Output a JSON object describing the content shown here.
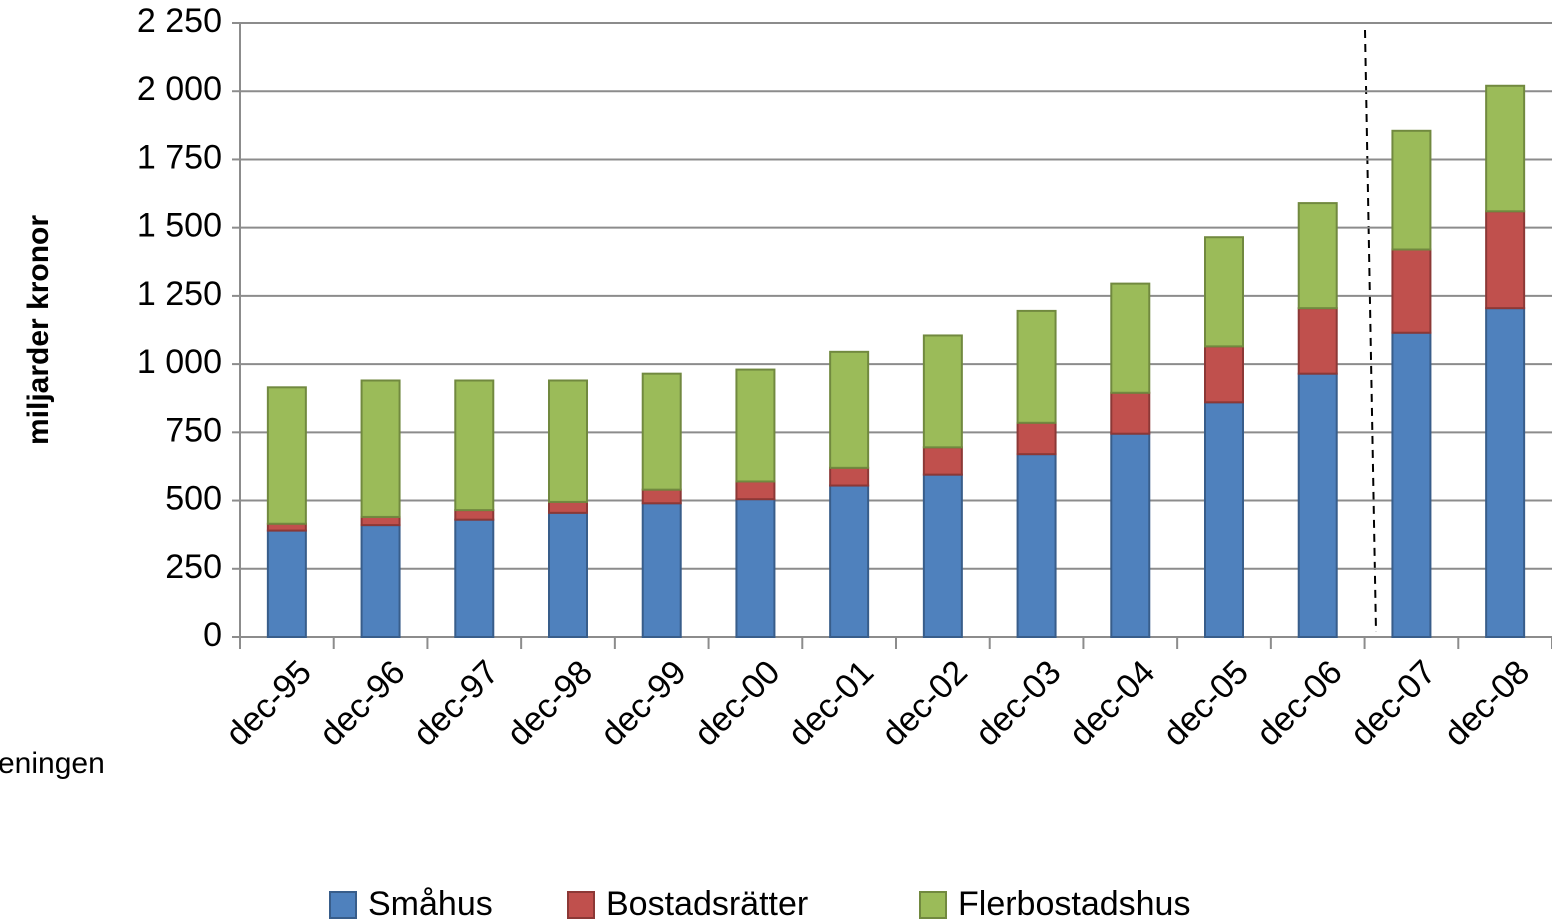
{
  "chart_data": {
    "type": "stacked_bar",
    "y_label": "miljarder kronor",
    "annotation": "eningen",
    "categories": [
      "dec-95",
      "dec-96",
      "dec-97",
      "dec-98",
      "dec-99",
      "dec-00",
      "dec-01",
      "dec-02",
      "dec-03",
      "dec-04",
      "dec-05",
      "dec-06",
      "dec-07",
      "dec-08"
    ],
    "series": [
      {
        "name": "Småhus",
        "color": "#4f81bd",
        "values": [
          390,
          410,
          430,
          455,
          490,
          505,
          555,
          595,
          670,
          745,
          860,
          965,
          1115,
          1205
        ]
      },
      {
        "name": "Bostadsrätter",
        "color": "#c0504d",
        "values": [
          25,
          30,
          35,
          40,
          50,
          65,
          65,
          100,
          115,
          150,
          205,
          240,
          305,
          355
        ]
      },
      {
        "name": "Flerbostadshus",
        "color": "#9bbb59",
        "values": [
          500,
          500,
          475,
          445,
          425,
          410,
          425,
          410,
          410,
          400,
          400,
          385,
          435,
          460
        ]
      }
    ],
    "ylim": [
      0,
      2250
    ],
    "yticks": [
      0,
      250,
      500,
      750,
      {
        "value": 1000,
        "label": "1 000"
      },
      {
        "value": 1250,
        "label": "1 250"
      },
      {
        "value": 1500,
        "label": "1 500"
      },
      {
        "value": 1750,
        "label": "1 750"
      },
      {
        "value": 2000,
        "label": "2 000"
      },
      {
        "value": 2250,
        "label": "2 250"
      }
    ],
    "grid": true,
    "legend": "bottom"
  }
}
